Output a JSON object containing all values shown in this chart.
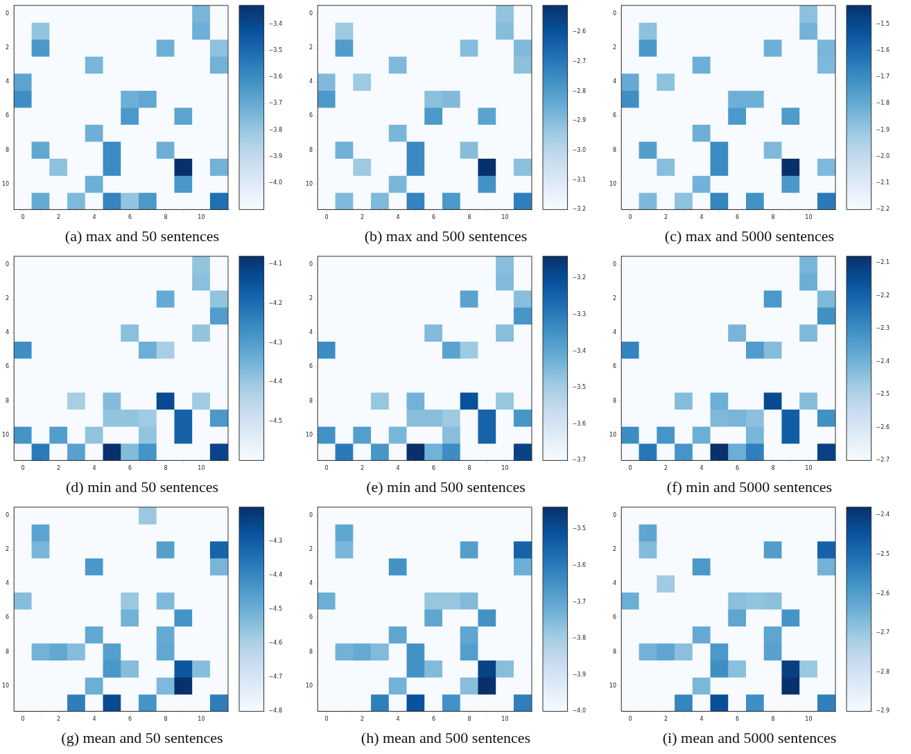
{
  "chart_data": [
    {
      "type": "heatmap",
      "title": "(a) max and 50 sentences",
      "categories": [
        "0",
        null,
        "2",
        null,
        "4",
        null,
        "6",
        null,
        "8",
        null,
        "10",
        null
      ],
      "y_categories": [
        "0",
        null,
        "2",
        null,
        "4",
        null,
        "6",
        null,
        "8",
        null,
        "10",
        null
      ],
      "clim": [
        -4.1,
        -3.33
      ],
      "cticks": [
        {
          "value": -4.0,
          "label": "−4.0"
        },
        {
          "value": -3.9,
          "label": "−3.9"
        },
        {
          "value": -3.8,
          "label": "−3.8"
        },
        {
          "value": -3.7,
          "label": "−3.7"
        },
        {
          "value": -3.6,
          "label": "−3.6"
        },
        {
          "value": -3.5,
          "label": "−3.5"
        },
        {
          "value": -3.4,
          "label": "−3.4"
        }
      ],
      "cells": [
        [
          -4.1,
          -4.1,
          -4.1,
          -4.1,
          -4.1,
          -4.1,
          -4.1,
          -4.1,
          -4.1,
          -4.1,
          -3.74,
          -4.1
        ],
        [
          -4.1,
          -3.79,
          -4.1,
          -4.1,
          -4.1,
          -4.1,
          -4.1,
          -4.1,
          -4.1,
          -4.1,
          -3.72,
          -4.1
        ],
        [
          -4.1,
          -3.64,
          -4.1,
          -4.1,
          -4.1,
          -4.1,
          -4.1,
          -4.1,
          -3.72,
          -4.1,
          -4.1,
          -3.78
        ],
        [
          -4.1,
          -4.1,
          -4.1,
          -4.1,
          -3.74,
          -4.1,
          -4.1,
          -4.1,
          -4.1,
          -4.1,
          -4.1,
          -3.73
        ],
        [
          -3.68,
          -4.1,
          -4.1,
          -4.1,
          -4.1,
          -4.1,
          -4.1,
          -4.1,
          -4.1,
          -4.1,
          -4.1,
          -4.1
        ],
        [
          -3.61,
          -4.1,
          -4.1,
          -4.1,
          -4.1,
          -4.1,
          -3.72,
          -3.69,
          -4.1,
          -4.1,
          -4.1,
          -4.1
        ],
        [
          -4.1,
          -4.1,
          -4.1,
          -4.1,
          -4.1,
          -4.1,
          -3.64,
          -4.1,
          -4.1,
          -3.68,
          -4.1,
          -4.1
        ],
        [
          -4.1,
          -4.1,
          -4.1,
          -4.1,
          -3.72,
          -4.1,
          -4.1,
          -4.1,
          -4.1,
          -4.1,
          -4.1,
          -4.1
        ],
        [
          -4.1,
          -3.69,
          -4.1,
          -4.1,
          -4.1,
          -3.6,
          -4.1,
          -4.1,
          -3.72,
          -4.1,
          -4.1,
          -4.1
        ],
        [
          -4.1,
          -4.1,
          -3.78,
          -4.1,
          -4.1,
          -3.6,
          -4.1,
          -4.1,
          -4.1,
          -3.33,
          -4.1,
          -3.73
        ],
        [
          -4.1,
          -4.1,
          -4.1,
          -4.1,
          -3.72,
          -4.1,
          -4.1,
          -4.1,
          -4.1,
          -3.64,
          -4.1,
          -4.1
        ],
        [
          -4.1,
          -3.7,
          -4.1,
          -3.75,
          -4.1,
          -3.58,
          -3.79,
          -3.64,
          -4.1,
          -4.1,
          -4.1,
          -3.52
        ]
      ]
    },
    {
      "type": "heatmap",
      "title": "(b) max and 500 sentences",
      "categories": [
        "0",
        null,
        "2",
        null,
        "4",
        null,
        "6",
        null,
        "8",
        null,
        "10",
        null
      ],
      "y_categories": [
        "0",
        null,
        "2",
        null,
        "4",
        null,
        "6",
        null,
        "8",
        null,
        "10",
        null
      ],
      "clim": [
        -3.2,
        -2.51
      ],
      "cticks": [
        {
          "value": -3.2,
          "label": "−3.2"
        },
        {
          "value": -3.1,
          "label": "−3.1"
        },
        {
          "value": -3.0,
          "label": "−3.0"
        },
        {
          "value": -2.9,
          "label": "−2.9"
        },
        {
          "value": -2.8,
          "label": "−2.8"
        },
        {
          "value": -2.7,
          "label": "−2.7"
        },
        {
          "value": -2.6,
          "label": "−2.6"
        }
      ],
      "cells": [
        [
          -3.2,
          -3.2,
          -3.2,
          -3.2,
          -3.2,
          -3.2,
          -3.2,
          -3.2,
          -3.2,
          -3.2,
          -2.92,
          -3.2
        ],
        [
          -3.2,
          -2.94,
          -3.2,
          -3.2,
          -3.2,
          -3.2,
          -3.2,
          -3.2,
          -3.2,
          -3.2,
          -2.9,
          -3.2
        ],
        [
          -3.2,
          -2.8,
          -3.2,
          -3.2,
          -3.2,
          -3.2,
          -3.2,
          -3.2,
          -2.9,
          -3.2,
          -3.2,
          -2.89
        ],
        [
          -3.2,
          -3.2,
          -3.2,
          -3.2,
          -2.89,
          -3.2,
          -3.2,
          -3.2,
          -3.2,
          -3.2,
          -3.2,
          -2.91
        ],
        [
          -2.89,
          -3.2,
          -2.94,
          -3.2,
          -3.2,
          -3.2,
          -3.2,
          -3.2,
          -3.2,
          -3.2,
          -3.2,
          -3.2
        ],
        [
          -2.79,
          -3.2,
          -3.2,
          -3.2,
          -3.2,
          -3.2,
          -2.91,
          -2.89,
          -3.2,
          -3.2,
          -3.2,
          -3.2
        ],
        [
          -3.2,
          -3.2,
          -3.2,
          -3.2,
          -3.2,
          -3.2,
          -2.79,
          -3.2,
          -3.2,
          -2.82,
          -3.2,
          -3.2
        ],
        [
          -3.2,
          -3.2,
          -3.2,
          -3.2,
          -2.88,
          -3.2,
          -3.2,
          -3.2,
          -3.2,
          -3.2,
          -3.2,
          -3.2
        ],
        [
          -3.2,
          -2.86,
          -3.2,
          -3.2,
          -3.2,
          -2.75,
          -3.2,
          -3.2,
          -2.9,
          -3.2,
          -3.2,
          -3.2
        ],
        [
          -3.2,
          -3.2,
          -2.94,
          -3.2,
          -3.2,
          -2.75,
          -3.2,
          -3.2,
          -3.2,
          -2.51,
          -3.2,
          -2.91
        ],
        [
          -3.2,
          -3.2,
          -3.2,
          -3.2,
          -2.88,
          -3.2,
          -3.2,
          -3.2,
          -3.2,
          -2.77,
          -3.2,
          -3.2
        ],
        [
          -3.2,
          -2.89,
          -3.2,
          -2.89,
          -3.2,
          -2.73,
          -3.2,
          -2.79,
          -3.2,
          -3.2,
          -3.2,
          -2.72
        ]
      ]
    },
    {
      "type": "heatmap",
      "title": "(c) max and 5000 sentences",
      "categories": [
        "0",
        null,
        "2",
        null,
        "4",
        null,
        "6",
        null,
        "8",
        null,
        "10",
        null
      ],
      "y_categories": [
        "0",
        null,
        "2",
        null,
        "4",
        null,
        "6",
        null,
        "8",
        null,
        "10",
        null
      ],
      "clim": [
        -2.2,
        -1.43
      ],
      "cticks": [
        {
          "value": -2.2,
          "label": "−2.2"
        },
        {
          "value": -2.1,
          "label": "−2.1"
        },
        {
          "value": -2.0,
          "label": "−2.0"
        },
        {
          "value": -1.9,
          "label": "−1.9"
        },
        {
          "value": -1.8,
          "label": "−1.8"
        },
        {
          "value": -1.7,
          "label": "−1.7"
        },
        {
          "value": -1.6,
          "label": "−1.6"
        },
        {
          "value": -1.5,
          "label": "−1.5"
        }
      ],
      "cells": [
        [
          -2.2,
          -2.2,
          -2.2,
          -2.2,
          -2.2,
          -2.2,
          -2.2,
          -2.2,
          -2.2,
          -2.2,
          -1.88,
          -2.2
        ],
        [
          -2.2,
          -1.88,
          -2.2,
          -2.2,
          -2.2,
          -2.2,
          -2.2,
          -2.2,
          -2.2,
          -2.2,
          -1.83,
          -2.2
        ],
        [
          -2.2,
          -1.74,
          -2.2,
          -2.2,
          -2.2,
          -2.2,
          -2.2,
          -2.2,
          -1.82,
          -2.2,
          -2.2,
          -1.84
        ],
        [
          -2.2,
          -2.2,
          -2.2,
          -2.2,
          -1.82,
          -2.2,
          -2.2,
          -2.2,
          -2.2,
          -2.2,
          -2.2,
          -1.85
        ],
        [
          -1.8,
          -2.2,
          -1.88,
          -2.2,
          -2.2,
          -2.2,
          -2.2,
          -2.2,
          -2.2,
          -2.2,
          -2.2,
          -2.2
        ],
        [
          -1.71,
          -2.2,
          -2.2,
          -2.2,
          -2.2,
          -2.2,
          -1.82,
          -1.82,
          -2.2,
          -2.2,
          -2.2,
          -2.2
        ],
        [
          -2.2,
          -2.2,
          -2.2,
          -2.2,
          -2.2,
          -2.2,
          -1.74,
          -2.2,
          -2.2,
          -1.75,
          -2.2,
          -2.2
        ],
        [
          -2.2,
          -2.2,
          -2.2,
          -2.2,
          -1.82,
          -2.2,
          -2.2,
          -2.2,
          -2.2,
          -2.2,
          -2.2,
          -2.2
        ],
        [
          -2.2,
          -1.76,
          -2.2,
          -2.2,
          -2.2,
          -1.7,
          -2.2,
          -2.2,
          -1.85,
          -2.2,
          -2.2,
          -2.2
        ],
        [
          -2.2,
          -2.2,
          -1.87,
          -2.2,
          -2.2,
          -1.7,
          -2.2,
          -2.2,
          -2.2,
          -1.43,
          -2.2,
          -1.85
        ],
        [
          -2.2,
          -2.2,
          -2.2,
          -2.2,
          -1.83,
          -2.2,
          -2.2,
          -2.2,
          -2.2,
          -1.74,
          -2.2,
          -2.2
        ],
        [
          -2.2,
          -1.85,
          -2.2,
          -1.88,
          -2.2,
          -1.68,
          -2.2,
          -1.72,
          -2.2,
          -2.2,
          -2.2,
          -1.65
        ]
      ]
    },
    {
      "type": "heatmap",
      "title": "(d) min and 50 sentences",
      "categories": [
        "0",
        null,
        "2",
        null,
        "4",
        null,
        "6",
        null,
        "8",
        null,
        "10",
        null
      ],
      "y_categories": [
        "0",
        null,
        "2",
        null,
        "4",
        null,
        "6",
        null,
        "8",
        null,
        "10",
        null
      ],
      "clim": [
        -4.6,
        -4.08
      ],
      "cticks": [
        {
          "value": -4.5,
          "label": "−4.5"
        },
        {
          "value": -4.4,
          "label": "−4.4"
        },
        {
          "value": -4.3,
          "label": "−4.3"
        },
        {
          "value": -4.2,
          "label": "−4.2"
        },
        {
          "value": -4.1,
          "label": "−4.1"
        }
      ],
      "cells": [
        [
          -4.6,
          -4.6,
          -4.6,
          -4.6,
          -4.6,
          -4.6,
          -4.6,
          -4.6,
          -4.6,
          -4.6,
          -4.39,
          -4.6
        ],
        [
          -4.6,
          -4.6,
          -4.6,
          -4.6,
          -4.6,
          -4.6,
          -4.6,
          -4.6,
          -4.6,
          -4.6,
          -4.38,
          -4.6
        ],
        [
          -4.6,
          -4.6,
          -4.6,
          -4.6,
          -4.6,
          -4.6,
          -4.6,
          -4.6,
          -4.33,
          -4.6,
          -4.6,
          -4.39
        ],
        [
          -4.6,
          -4.6,
          -4.6,
          -4.6,
          -4.6,
          -4.6,
          -4.6,
          -4.6,
          -4.6,
          -4.6,
          -4.6,
          -4.3
        ],
        [
          -4.6,
          -4.6,
          -4.6,
          -4.6,
          -4.6,
          -4.6,
          -4.38,
          -4.6,
          -4.6,
          -4.6,
          -4.39,
          -4.6
        ],
        [
          -4.27,
          -4.6,
          -4.6,
          -4.6,
          -4.6,
          -4.6,
          -4.6,
          -4.34,
          -4.42,
          -4.6,
          -4.6,
          -4.6
        ],
        [
          -4.6,
          -4.6,
          -4.6,
          -4.6,
          -4.6,
          -4.6,
          -4.6,
          -4.6,
          -4.6,
          -4.6,
          -4.6,
          -4.6
        ],
        [
          -4.6,
          -4.6,
          -4.6,
          -4.6,
          -4.6,
          -4.6,
          -4.6,
          -4.6,
          -4.6,
          -4.6,
          -4.6,
          -4.6
        ],
        [
          -4.6,
          -4.6,
          -4.6,
          -4.42,
          -4.6,
          -4.37,
          -4.6,
          -4.6,
          -4.13,
          -4.6,
          -4.41,
          -4.6
        ],
        [
          -4.6,
          -4.6,
          -4.6,
          -4.6,
          -4.6,
          -4.39,
          -4.39,
          -4.41,
          -4.6,
          -4.18,
          -4.6,
          -4.29
        ],
        [
          -4.28,
          -4.6,
          -4.3,
          -4.6,
          -4.39,
          -4.6,
          -4.6,
          -4.39,
          -4.6,
          -4.18,
          -4.6,
          -4.6
        ],
        [
          -4.6,
          -4.23,
          -4.6,
          -4.31,
          -4.6,
          -4.08,
          -4.37,
          -4.28,
          -4.6,
          -4.6,
          -4.6,
          -4.12
        ]
      ]
    },
    {
      "type": "heatmap",
      "title": "(e) min and 500 sentences",
      "categories": [
        "0",
        null,
        "2",
        null,
        "4",
        null,
        "6",
        null,
        "8",
        null,
        "10",
        null
      ],
      "y_categories": [
        "0",
        null,
        "2",
        null,
        "4",
        null,
        "6",
        null,
        "8",
        null,
        "10",
        null
      ],
      "clim": [
        -3.7,
        -3.14
      ],
      "cticks": [
        {
          "value": -3.7,
          "label": "−3.7"
        },
        {
          "value": -3.6,
          "label": "−3.6"
        },
        {
          "value": -3.5,
          "label": "−3.5"
        },
        {
          "value": -3.4,
          "label": "−3.4"
        },
        {
          "value": -3.3,
          "label": "−3.3"
        },
        {
          "value": -3.2,
          "label": "−3.2"
        }
      ],
      "cells": [
        [
          -3.7,
          -3.7,
          -3.7,
          -3.7,
          -3.7,
          -3.7,
          -3.7,
          -3.7,
          -3.7,
          -3.7,
          -3.46,
          -3.7
        ],
        [
          -3.7,
          -3.7,
          -3.7,
          -3.7,
          -3.7,
          -3.7,
          -3.7,
          -3.7,
          -3.7,
          -3.7,
          -3.45,
          -3.7
        ],
        [
          -3.7,
          -3.7,
          -3.7,
          -3.7,
          -3.7,
          -3.7,
          -3.7,
          -3.7,
          -3.39,
          -3.7,
          -3.7,
          -3.46
        ],
        [
          -3.7,
          -3.7,
          -3.7,
          -3.7,
          -3.7,
          -3.7,
          -3.7,
          -3.7,
          -3.7,
          -3.7,
          -3.7,
          -3.36
        ],
        [
          -3.7,
          -3.7,
          -3.7,
          -3.7,
          -3.7,
          -3.7,
          -3.45,
          -3.7,
          -3.7,
          -3.7,
          -3.46,
          -3.7
        ],
        [
          -3.34,
          -3.7,
          -3.7,
          -3.7,
          -3.7,
          -3.7,
          -3.7,
          -3.39,
          -3.49,
          -3.7,
          -3.7,
          -3.7
        ],
        [
          -3.7,
          -3.7,
          -3.7,
          -3.7,
          -3.7,
          -3.7,
          -3.7,
          -3.7,
          -3.7,
          -3.7,
          -3.7,
          -3.7
        ],
        [
          -3.7,
          -3.7,
          -3.7,
          -3.7,
          -3.7,
          -3.7,
          -3.7,
          -3.7,
          -3.7,
          -3.7,
          -3.7,
          -3.7
        ],
        [
          -3.7,
          -3.7,
          -3.7,
          -3.48,
          -3.7,
          -3.43,
          -3.7,
          -3.7,
          -3.21,
          -3.7,
          -3.48,
          -3.7
        ],
        [
          -3.7,
          -3.7,
          -3.7,
          -3.7,
          -3.7,
          -3.46,
          -3.46,
          -3.49,
          -3.7,
          -3.25,
          -3.7,
          -3.36
        ],
        [
          -3.35,
          -3.7,
          -3.38,
          -3.7,
          -3.44,
          -3.7,
          -3.7,
          -3.46,
          -3.7,
          -3.25,
          -3.7,
          -3.7
        ],
        [
          -3.7,
          -3.3,
          -3.7,
          -3.36,
          -3.7,
          -3.14,
          -3.43,
          -3.34,
          -3.7,
          -3.7,
          -3.7,
          -3.18
        ]
      ]
    },
    {
      "type": "heatmap",
      "title": "(f) min and 5000 sentences",
      "categories": [
        "0",
        null,
        "2",
        null,
        "4",
        null,
        "6",
        null,
        "8",
        null,
        "10",
        null
      ],
      "y_categories": [
        "0",
        null,
        "2",
        null,
        "4",
        null,
        "6",
        null,
        "8",
        null,
        "10",
        null
      ],
      "clim": [
        -2.7,
        -2.08
      ],
      "cticks": [
        {
          "value": -2.7,
          "label": "−2.7"
        },
        {
          "value": -2.6,
          "label": "−2.6"
        },
        {
          "value": -2.5,
          "label": "−2.5"
        },
        {
          "value": -2.4,
          "label": "−2.4"
        },
        {
          "value": -2.3,
          "label": "−2.3"
        },
        {
          "value": -2.2,
          "label": "−2.2"
        },
        {
          "value": -2.1,
          "label": "−2.1"
        }
      ],
      "cells": [
        [
          -2.7,
          -2.7,
          -2.7,
          -2.7,
          -2.7,
          -2.7,
          -2.7,
          -2.7,
          -2.7,
          -2.7,
          -2.41,
          -2.7
        ],
        [
          -2.7,
          -2.7,
          -2.7,
          -2.7,
          -2.7,
          -2.7,
          -2.7,
          -2.7,
          -2.7,
          -2.7,
          -2.39,
          -2.7
        ],
        [
          -2.7,
          -2.7,
          -2.7,
          -2.7,
          -2.7,
          -2.7,
          -2.7,
          -2.7,
          -2.33,
          -2.7,
          -2.7,
          -2.42
        ],
        [
          -2.7,
          -2.7,
          -2.7,
          -2.7,
          -2.7,
          -2.7,
          -2.7,
          -2.7,
          -2.7,
          -2.7,
          -2.7,
          -2.31
        ],
        [
          -2.7,
          -2.7,
          -2.7,
          -2.7,
          -2.7,
          -2.7,
          -2.41,
          -2.7,
          -2.7,
          -2.7,
          -2.42,
          -2.7
        ],
        [
          -2.28,
          -2.7,
          -2.7,
          -2.7,
          -2.7,
          -2.7,
          -2.7,
          -2.34,
          -2.43,
          -2.7,
          -2.7,
          -2.7
        ],
        [
          -2.7,
          -2.7,
          -2.7,
          -2.7,
          -2.7,
          -2.7,
          -2.7,
          -2.7,
          -2.7,
          -2.7,
          -2.7,
          -2.7
        ],
        [
          -2.7,
          -2.7,
          -2.7,
          -2.7,
          -2.7,
          -2.7,
          -2.7,
          -2.7,
          -2.7,
          -2.7,
          -2.7,
          -2.7
        ],
        [
          -2.7,
          -2.7,
          -2.7,
          -2.43,
          -2.7,
          -2.39,
          -2.7,
          -2.7,
          -2.14,
          -2.7,
          -2.43,
          -2.7
        ],
        [
          -2.7,
          -2.7,
          -2.7,
          -2.7,
          -2.7,
          -2.42,
          -2.41,
          -2.44,
          -2.7,
          -2.19,
          -2.7,
          -2.31
        ],
        [
          -2.3,
          -2.7,
          -2.32,
          -2.7,
          -2.39,
          -2.7,
          -2.7,
          -2.41,
          -2.7,
          -2.19,
          -2.7,
          -2.7
        ],
        [
          -2.7,
          -2.25,
          -2.7,
          -2.32,
          -2.7,
          -2.08,
          -2.39,
          -2.27,
          -2.7,
          -2.7,
          -2.7,
          -2.12
        ]
      ]
    },
    {
      "type": "heatmap",
      "title": "(g) mean and 50 sentences",
      "categories": [
        "0",
        null,
        "2",
        null,
        "4",
        null,
        "6",
        null,
        "8",
        null,
        "10",
        null
      ],
      "y_categories": [
        "0",
        null,
        "2",
        null,
        "4",
        null,
        "6",
        null,
        "8",
        null,
        "10",
        null
      ],
      "clim": [
        -4.8,
        -4.2
      ],
      "cticks": [
        {
          "value": -4.8,
          "label": "−4.8"
        },
        {
          "value": -4.7,
          "label": "−4.7"
        },
        {
          "value": -4.6,
          "label": "−4.6"
        },
        {
          "value": -4.5,
          "label": "−4.5"
        },
        {
          "value": -4.4,
          "label": "−4.4"
        },
        {
          "value": -4.3,
          "label": "−4.3"
        }
      ],
      "cells": [
        [
          -4.8,
          -4.8,
          -4.8,
          -4.8,
          -4.8,
          -4.8,
          -4.8,
          -4.57,
          -4.8,
          -4.8,
          -4.8,
          -4.8
        ],
        [
          -4.8,
          -4.47,
          -4.8,
          -4.8,
          -4.8,
          -4.8,
          -4.8,
          -4.8,
          -4.8,
          -4.8,
          -4.8,
          -4.8
        ],
        [
          -4.8,
          -4.52,
          -4.8,
          -4.8,
          -4.8,
          -4.8,
          -4.8,
          -4.8,
          -4.46,
          -4.8,
          -4.8,
          -4.32
        ],
        [
          -4.8,
          -4.8,
          -4.8,
          -4.8,
          -4.44,
          -4.8,
          -4.8,
          -4.8,
          -4.8,
          -4.8,
          -4.8,
          -4.52
        ],
        [
          -4.8,
          -4.8,
          -4.8,
          -4.8,
          -4.8,
          -4.8,
          -4.8,
          -4.8,
          -4.8,
          -4.8,
          -4.8,
          -4.8
        ],
        [
          -4.54,
          -4.8,
          -4.8,
          -4.8,
          -4.8,
          -4.8,
          -4.57,
          -4.8,
          -4.53,
          -4.8,
          -4.8,
          -4.8
        ],
        [
          -4.8,
          -4.8,
          -4.8,
          -4.8,
          -4.8,
          -4.8,
          -4.51,
          -4.8,
          -4.8,
          -4.43,
          -4.8,
          -4.8
        ],
        [
          -4.8,
          -4.8,
          -4.8,
          -4.8,
          -4.48,
          -4.8,
          -4.8,
          -4.8,
          -4.49,
          -4.8,
          -4.8,
          -4.8
        ],
        [
          -4.8,
          -4.51,
          -4.48,
          -4.54,
          -4.8,
          -4.46,
          -4.8,
          -4.8,
          -4.48,
          -4.8,
          -4.8,
          -4.8
        ],
        [
          -4.8,
          -4.8,
          -4.8,
          -4.8,
          -4.8,
          -4.44,
          -4.54,
          -4.8,
          -4.8,
          -4.29,
          -4.54,
          -4.8
        ],
        [
          -4.8,
          -4.8,
          -4.8,
          -4.8,
          -4.5,
          -4.8,
          -4.8,
          -4.8,
          -4.53,
          -4.2,
          -4.8,
          -4.8
        ],
        [
          -4.8,
          -4.8,
          -4.8,
          -4.38,
          -4.8,
          -4.26,
          -4.8,
          -4.43,
          -4.8,
          -4.8,
          -4.8,
          -4.38
        ]
      ]
    },
    {
      "type": "heatmap",
      "title": "(h) mean and 500 sentences",
      "categories": [
        "0",
        null,
        "2",
        null,
        "4",
        null,
        "6",
        null,
        "8",
        null,
        "10",
        null
      ],
      "y_categories": [
        "0",
        null,
        "2",
        null,
        "4",
        null,
        "6",
        null,
        "8",
        null,
        "10",
        null
      ],
      "clim": [
        -4.0,
        -3.44
      ],
      "cticks": [
        {
          "value": -4.0,
          "label": "−4.0"
        },
        {
          "value": -3.9,
          "label": "−3.9"
        },
        {
          "value": -3.8,
          "label": "−3.8"
        },
        {
          "value": -3.7,
          "label": "−3.7"
        },
        {
          "value": -3.6,
          "label": "−3.6"
        },
        {
          "value": -3.5,
          "label": "−3.5"
        }
      ],
      "cells": [
        [
          -4.0,
          -4.0,
          -4.0,
          -4.0,
          -4.0,
          -4.0,
          -4.0,
          -4.0,
          -4.0,
          -4.0,
          -4.0,
          -4.0
        ],
        [
          -4.0,
          -3.7,
          -4.0,
          -4.0,
          -4.0,
          -4.0,
          -4.0,
          -4.0,
          -4.0,
          -4.0,
          -4.0,
          -4.0
        ],
        [
          -4.0,
          -3.74,
          -4.0,
          -4.0,
          -4.0,
          -4.0,
          -4.0,
          -4.0,
          -3.68,
          -4.0,
          -4.0,
          -3.55
        ],
        [
          -4.0,
          -4.0,
          -4.0,
          -4.0,
          -3.65,
          -4.0,
          -4.0,
          -4.0,
          -4.0,
          -4.0,
          -4.0,
          -3.72
        ],
        [
          -4.0,
          -4.0,
          -4.0,
          -4.0,
          -4.0,
          -4.0,
          -4.0,
          -4.0,
          -4.0,
          -4.0,
          -4.0,
          -4.0
        ],
        [
          -3.72,
          -4.0,
          -4.0,
          -4.0,
          -4.0,
          -4.0,
          -3.78,
          -3.78,
          -3.75,
          -4.0,
          -4.0,
          -4.0
        ],
        [
          -4.0,
          -4.0,
          -4.0,
          -4.0,
          -4.0,
          -4.0,
          -3.7,
          -4.0,
          -4.0,
          -3.65,
          -4.0,
          -4.0
        ],
        [
          -4.0,
          -4.0,
          -4.0,
          -4.0,
          -3.7,
          -4.0,
          -4.0,
          -4.0,
          -3.7,
          -4.0,
          -4.0,
          -4.0
        ],
        [
          -4.0,
          -3.73,
          -3.71,
          -3.75,
          -4.0,
          -3.65,
          -4.0,
          -4.0,
          -3.68,
          -4.0,
          -4.0,
          -4.0
        ],
        [
          -4.0,
          -4.0,
          -4.0,
          -4.0,
          -4.0,
          -3.65,
          -3.75,
          -4.0,
          -4.0,
          -3.48,
          -3.76,
          -4.0
        ],
        [
          -4.0,
          -4.0,
          -4.0,
          -4.0,
          -3.73,
          -4.0,
          -4.0,
          -4.0,
          -3.76,
          -3.44,
          -4.0,
          -4.0
        ],
        [
          -4.0,
          -4.0,
          -4.0,
          -3.61,
          -4.0,
          -3.51,
          -4.0,
          -3.65,
          -4.0,
          -4.0,
          -4.0,
          -3.61
        ]
      ]
    },
    {
      "type": "heatmap",
      "title": "(i) mean and 5000 sentences",
      "categories": [
        "0",
        null,
        "2",
        null,
        "4",
        null,
        "6",
        null,
        "8",
        null,
        "10",
        null
      ],
      "y_categories": [
        "0",
        null,
        "2",
        null,
        "4",
        null,
        "6",
        null,
        "8",
        null,
        "10",
        null
      ],
      "clim": [
        -2.9,
        -2.38
      ],
      "cticks": [
        {
          "value": -2.9,
          "label": "−2.9"
        },
        {
          "value": -2.8,
          "label": "−2.8"
        },
        {
          "value": -2.7,
          "label": "−2.7"
        },
        {
          "value": -2.6,
          "label": "−2.6"
        },
        {
          "value": -2.5,
          "label": "−2.5"
        },
        {
          "value": -2.4,
          "label": "−2.4"
        }
      ],
      "cells": [
        [
          -2.9,
          -2.9,
          -2.9,
          -2.9,
          -2.9,
          -2.9,
          -2.9,
          -2.9,
          -2.9,
          -2.9,
          -2.9,
          -2.9
        ],
        [
          -2.9,
          -2.62,
          -2.9,
          -2.9,
          -2.9,
          -2.9,
          -2.9,
          -2.9,
          -2.9,
          -2.9,
          -2.9,
          -2.9
        ],
        [
          -2.9,
          -2.67,
          -2.9,
          -2.9,
          -2.9,
          -2.9,
          -2.9,
          -2.9,
          -2.6,
          -2.9,
          -2.9,
          -2.48
        ],
        [
          -2.9,
          -2.9,
          -2.9,
          -2.9,
          -2.59,
          -2.9,
          -2.9,
          -2.9,
          -2.9,
          -2.9,
          -2.9,
          -2.65
        ],
        [
          -2.9,
          -2.9,
          -2.71,
          -2.9,
          -2.9,
          -2.9,
          -2.9,
          -2.9,
          -2.9,
          -2.9,
          -2.9,
          -2.9
        ],
        [
          -2.64,
          -2.9,
          -2.9,
          -2.9,
          -2.9,
          -2.9,
          -2.68,
          -2.69,
          -2.68,
          -2.9,
          -2.9,
          -2.9
        ],
        [
          -2.9,
          -2.9,
          -2.9,
          -2.9,
          -2.9,
          -2.9,
          -2.62,
          -2.9,
          -2.9,
          -2.58,
          -2.9,
          -2.9
        ],
        [
          -2.9,
          -2.9,
          -2.9,
          -2.9,
          -2.63,
          -2.9,
          -2.9,
          -2.9,
          -2.62,
          -2.9,
          -2.9,
          -2.9
        ],
        [
          -2.9,
          -2.65,
          -2.62,
          -2.68,
          -2.9,
          -2.59,
          -2.9,
          -2.9,
          -2.61,
          -2.9,
          -2.9,
          -2.9
        ],
        [
          -2.9,
          -2.9,
          -2.9,
          -2.9,
          -2.9,
          -2.57,
          -2.68,
          -2.9,
          -2.9,
          -2.41,
          -2.7,
          -2.9
        ],
        [
          -2.9,
          -2.9,
          -2.9,
          -2.9,
          -2.66,
          -2.9,
          -2.9,
          -2.9,
          -2.9,
          -2.38,
          -2.9,
          -2.9
        ],
        [
          -2.9,
          -2.9,
          -2.9,
          -2.55,
          -2.9,
          -2.44,
          -2.9,
          -2.57,
          -2.9,
          -2.9,
          -2.9,
          -2.54
        ]
      ]
    }
  ]
}
